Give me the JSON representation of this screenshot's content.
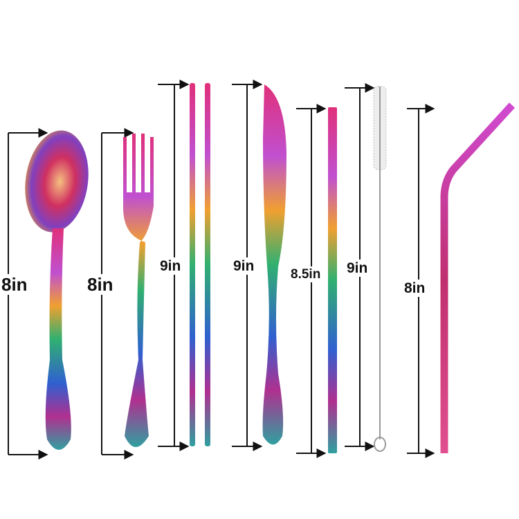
{
  "items": [
    {
      "name": "spoon",
      "label": "8in"
    },
    {
      "name": "fork",
      "label": "8in"
    },
    {
      "name": "chopsticks",
      "label": "9in"
    },
    {
      "name": "knife",
      "label": "9in"
    },
    {
      "name": "straight-straw",
      "label": "8.5in"
    },
    {
      "name": "cleaning-brush",
      "label": "9in"
    },
    {
      "name": "bent-straw",
      "label": "8in"
    }
  ],
  "colors": {
    "background": "#ffffff",
    "dimension_line": "#111111",
    "iridescent": [
      "#e0307a",
      "#d04ad0",
      "#f0a030",
      "#30b070",
      "#3060d0",
      "#b03090"
    ]
  }
}
